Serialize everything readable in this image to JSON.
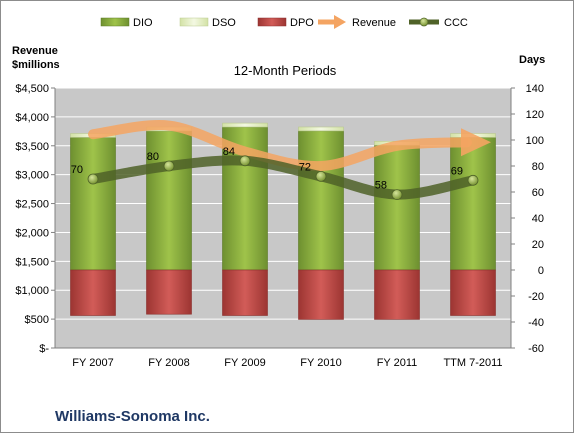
{
  "chart_data": {
    "type": "bar",
    "title": "12-Month Periods",
    "company": "Williams-Sonoma Inc.",
    "left_axis_label": [
      "Revenue",
      "$millions"
    ],
    "right_axis_label": "Days",
    "categories": [
      "FY 2007",
      "FY 2008",
      "FY 2009",
      "FY 2010",
      "FY 2011",
      "TTM 7-2011"
    ],
    "left_axis": {
      "min": 0,
      "max": 4500,
      "step": 500,
      "tick_labels": [
        "$-",
        "$500",
        "$1,000",
        "$1,500",
        "$2,000",
        "$2,500",
        "$3,000",
        "$3,500",
        "$4,000",
        "$4,500"
      ]
    },
    "right_axis": {
      "min": -60,
      "max": 140,
      "step": 20,
      "tick_labels": [
        "-60",
        "-40",
        "-20",
        "0",
        "20",
        "40",
        "60",
        "80",
        "100",
        "120",
        "140"
      ]
    },
    "grid": true,
    "legend": {
      "position": "top",
      "entries": [
        "DIO",
        "DSO",
        "DPO",
        "Revenue",
        "CCC"
      ]
    },
    "series": [
      {
        "name": "DIO",
        "axis": "days",
        "stacking": "positive",
        "values": [
          102,
          107,
          110,
          107,
          96,
          102
        ]
      },
      {
        "name": "DSO",
        "axis": "days",
        "stacking": "positive",
        "values": [
          3,
          3,
          3,
          3,
          3,
          3
        ]
      },
      {
        "name": "DPO",
        "axis": "days",
        "stacking": "negative",
        "values": [
          -35,
          -34,
          -35,
          -38,
          -38,
          -35
        ]
      },
      {
        "name": "Revenue",
        "axis": "revenue",
        "type": "line",
        "values": [
          3700,
          3850,
          3400,
          3150,
          3500,
          3560
        ]
      },
      {
        "name": "CCC",
        "axis": "days",
        "type": "line",
        "values": [
          70,
          80,
          84,
          72,
          58,
          69
        ],
        "data_labels": [
          "70",
          "80",
          "84",
          "72",
          "58",
          "69"
        ]
      }
    ],
    "colors": {
      "DIO": "#8db33c",
      "DSO": "#e4efc4",
      "DPO": "#c0504d",
      "Revenue": "#f4a462",
      "CCC": "#4f6228",
      "plot_bg": "#c8c8c8",
      "gridline": "#ffffff"
    }
  }
}
